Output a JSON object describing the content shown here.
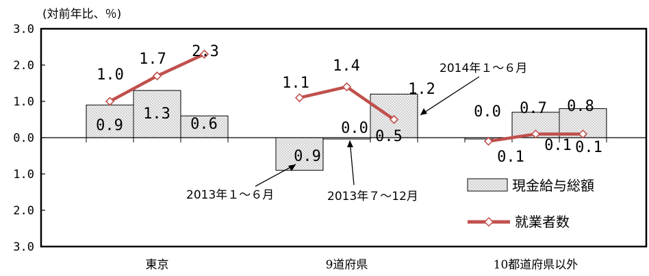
{
  "chart_data": {
    "type": "bar+line",
    "unit_label": "(対前年比、％)",
    "ylim": [
      -3.0,
      3.0
    ],
    "ytick_values": [
      3.0,
      2.0,
      1.0,
      0.0,
      -1.0,
      -2.0,
      -3.0
    ],
    "ytick_labels": [
      "3.0",
      "2.0",
      "1.0",
      "0.0",
      "1.0",
      "2.0",
      "3.0"
    ],
    "categories": [
      "東京",
      "9道府県",
      "10都道府県以外"
    ],
    "periods": [
      "2013年１～６月",
      "2013年７～12月",
      "2014年１～６月"
    ],
    "series": [
      {
        "name": "現金給与総額",
        "type": "bar",
        "values": [
          [
            0.9,
            1.3,
            0.6
          ],
          [
            -0.9,
            0.0,
            1.2
          ],
          [
            0.0,
            0.7,
            0.8
          ]
        ],
        "labels": [
          [
            "0.9",
            "1.3",
            "0.6"
          ],
          [
            "0.9",
            "0.0",
            "1.2"
          ],
          [
            "0.0",
            "0.7",
            "0.8"
          ]
        ]
      },
      {
        "name": "就業者数",
        "type": "line",
        "values": [
          [
            1.0,
            1.7,
            2.3
          ],
          [
            1.1,
            1.4,
            0.5
          ],
          [
            -0.1,
            0.1,
            0.1
          ]
        ],
        "labels": [
          [
            "1.0",
            "1.7",
            "2.3"
          ],
          [
            "1.1",
            "1.4",
            "0.5"
          ],
          [
            "0.1",
            "0.1",
            "0.1"
          ]
        ]
      }
    ],
    "annotations": [
      {
        "text": "2013年１～６月",
        "points_to": "9道府県 2013年１～６月 bar"
      },
      {
        "text": "2013年７～12月",
        "points_to": "9道府県 2013年７～12月 bar"
      },
      {
        "text": "2014年１～６月",
        "points_to": "9道府県 2014年１～６月 bar"
      }
    ],
    "legend_position": "bottom-right",
    "colors": {
      "bar_fill": "#e6e6e6",
      "bar_stroke": "#000000",
      "line": "#c0504d",
      "marker_fill": "#ffffff"
    }
  }
}
